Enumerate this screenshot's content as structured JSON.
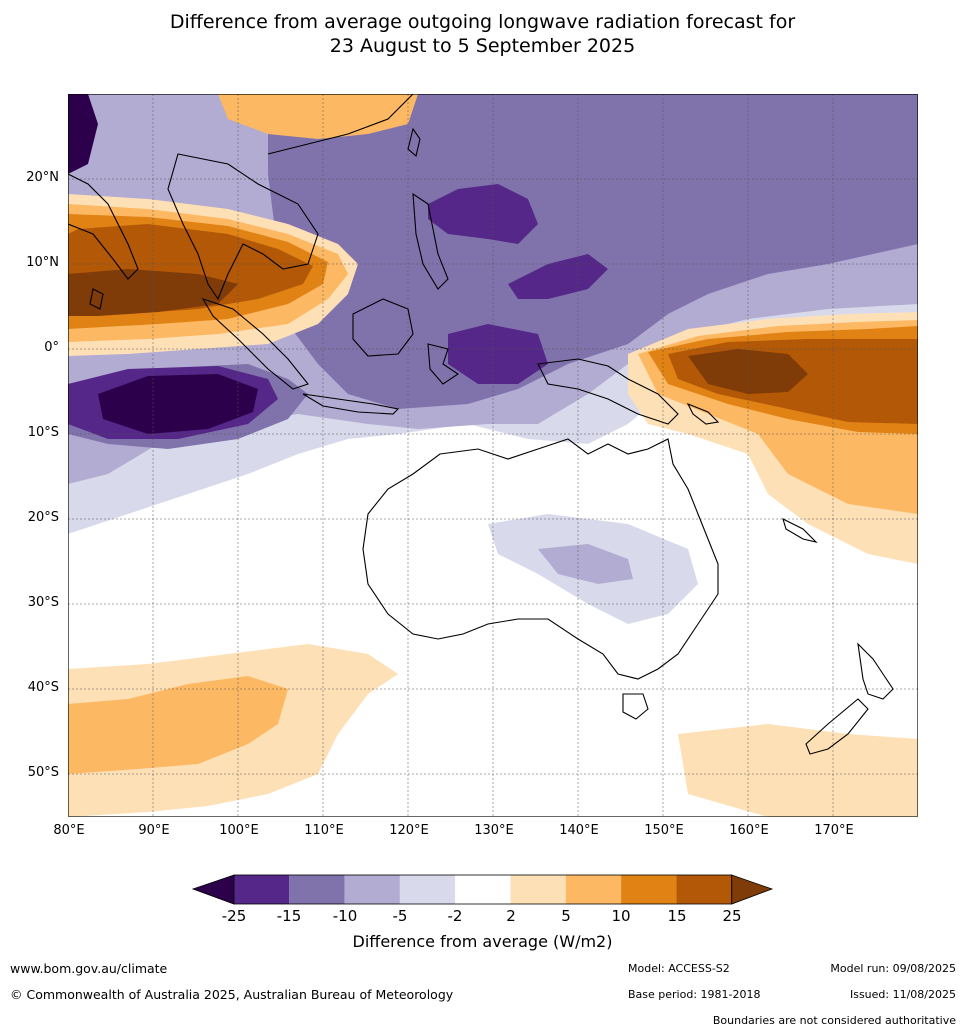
{
  "title": {
    "line1": "Difference from average outgoing longwave radiation forecast for",
    "line2": "23 August to 5 September 2025"
  },
  "map": {
    "lat_labels": [
      "20°N",
      "10°N",
      "0°",
      "10°S",
      "20°S",
      "30°S",
      "40°S",
      "50°S"
    ],
    "lon_labels": [
      "80°E",
      "90°E",
      "100°E",
      "110°E",
      "120°E",
      "130°E",
      "140°E",
      "150°E",
      "160°E",
      "170°E"
    ],
    "extent": {
      "lon": [
        80,
        180
      ],
      "lat": [
        -55,
        30
      ]
    }
  },
  "colorbar": {
    "ticks": [
      "-25",
      "-15",
      "-10",
      "-5",
      "-2",
      "2",
      "5",
      "10",
      "15",
      "25"
    ],
    "colors": {
      "lt-25": "#2d004b",
      "-25_-15": "#542788",
      "-15_-10": "#8073ac",
      "-10_-5": "#b2abd2",
      "-5_-2": "#d8daeb",
      "-2_2": "#ffffff",
      "2_5": "#fee0b6",
      "5_10": "#fdb863",
      "10_15": "#e08214",
      "15_25": "#b35806",
      "gt25": "#7f3b08"
    },
    "label": "Difference from average (W/m2)"
  },
  "footer": {
    "website": "www.bom.gov.au/climate",
    "copyright": "© Commonwealth of Australia 2025, Australian Bureau of Meteorology",
    "model": "Model: ACCESS-S2",
    "base_period": "Base period: 1981-2018",
    "model_run": "Model run: 09/08/2025",
    "issued": "Issued: 11/08/2025",
    "disclaimer": "Boundaries are not considered authoritative"
  }
}
